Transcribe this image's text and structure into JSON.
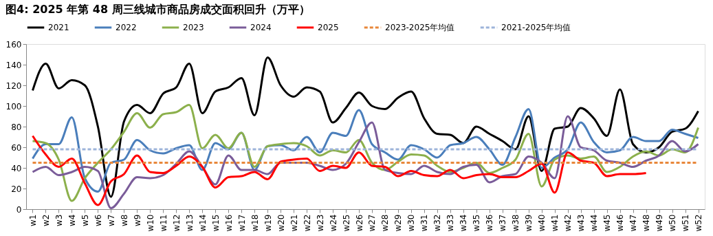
{
  "chart_data": {
    "type": "line",
    "title": "图4:  2025 年第 48 周三线城市商品房成交面积回升（万平）",
    "categories": [
      "w1",
      "w2",
      "w3",
      "w4",
      "w5",
      "w6",
      "w7",
      "w8",
      "w9",
      "w10",
      "w11",
      "w12",
      "w13",
      "w14",
      "w15",
      "w16",
      "w17",
      "w18",
      "w19",
      "w20",
      "w21",
      "w22",
      "w23",
      "w24",
      "w25",
      "w26",
      "w27",
      "w28",
      "w29",
      "w30",
      "w31",
      "w32",
      "w33",
      "w34",
      "w35",
      "w36",
      "w37",
      "w38",
      "w39",
      "w40",
      "w41",
      "w42",
      "w43",
      "w44",
      "w45",
      "w46",
      "w47",
      "w48",
      "w49",
      "w50",
      "w51",
      "w52"
    ],
    "series": [
      {
        "name": "2021",
        "color": "#000000",
        "values": [
          115,
          141,
          117,
          125,
          120,
          80,
          12,
          85,
          101,
          93,
          112,
          118,
          141,
          93,
          114,
          118,
          127,
          91,
          147,
          120,
          109,
          118,
          114,
          84,
          98,
          113,
          100,
          97,
          108,
          114,
          88,
          73,
          72,
          64,
          80,
          73,
          66,
          58,
          90,
          37,
          78,
          80,
          98,
          88,
          71,
          116,
          63,
          55,
          60,
          75,
          78,
          95
        ]
      },
      {
        "name": "2022",
        "color": "#4a7ebb",
        "values": [
          49,
          63,
          63,
          89,
          30,
          17,
          45,
          48,
          67,
          57,
          54,
          59,
          62,
          38,
          64,
          58,
          74,
          38,
          61,
          62,
          57,
          70,
          55,
          74,
          71,
          96,
          63,
          55,
          48,
          62,
          58,
          50,
          62,
          64,
          70,
          58,
          43,
          70,
          97,
          40,
          50,
          58,
          84,
          65,
          55,
          57,
          70,
          66,
          66,
          77,
          73,
          69
        ]
      },
      {
        "name": "2023",
        "color": "#8cb04c",
        "values": [
          66,
          64,
          48,
          8,
          30,
          45,
          58,
          75,
          93,
          79,
          92,
          94,
          101,
          59,
          72,
          59,
          74,
          41,
          61,
          63,
          64,
          61,
          52,
          57,
          55,
          67,
          45,
          38,
          46,
          53,
          52,
          42,
          36,
          40,
          45,
          35,
          40,
          48,
          73,
          22,
          48,
          52,
          49,
          51,
          36,
          41,
          51,
          56,
          52,
          58,
          55,
          79
        ]
      },
      {
        "name": "2024",
        "color": "#7a5c99",
        "values": [
          36,
          41,
          33,
          36,
          41,
          37,
          1,
          15,
          31,
          30,
          33,
          44,
          56,
          41,
          24,
          52,
          38,
          38,
          34,
          45,
          45,
          45,
          42,
          38,
          44,
          65,
          84,
          38,
          35,
          34,
          42,
          36,
          34,
          41,
          43,
          26,
          32,
          34,
          51,
          45,
          30,
          90,
          60,
          57,
          47,
          45,
          41,
          47,
          52,
          66,
          56,
          63
        ]
      },
      {
        "name": "2025",
        "color": "#ff0000",
        "values": [
          71,
          53,
          41,
          49,
          25,
          4,
          27,
          34,
          52,
          36,
          35,
          42,
          51,
          41,
          21,
          31,
          32,
          36,
          29,
          46,
          48,
          49,
          37,
          42,
          40,
          55,
          42,
          41,
          32,
          37,
          33,
          32,
          38,
          30,
          33,
          34,
          31,
          31,
          37,
          44,
          16,
          55,
          47,
          45,
          32,
          34,
          34,
          35,
          null,
          null,
          null,
          null
        ]
      },
      {
        "name": "2023-2025年均值",
        "color": "#e8873a",
        "line_style": "dashed",
        "values": [
          45,
          45,
          45,
          45,
          45,
          45,
          45,
          45,
          45,
          45,
          45,
          45,
          45,
          45,
          45,
          45,
          45,
          45,
          45,
          45,
          45,
          45,
          45,
          45,
          45,
          45,
          45,
          45,
          45,
          45,
          45,
          45,
          45,
          45,
          45,
          45,
          45,
          45,
          45,
          45,
          45,
          45,
          45,
          45,
          45,
          45,
          45,
          45,
          45,
          45,
          45,
          45
        ]
      },
      {
        "name": "2021-2025年均值",
        "color": "#9db4da",
        "line_style": "dashed",
        "values": [
          58,
          58,
          58,
          58,
          58,
          58,
          58,
          58,
          58,
          58,
          58,
          58,
          58,
          58,
          58,
          58,
          58,
          58,
          58,
          58,
          58,
          58,
          58,
          58,
          58,
          58,
          58,
          58,
          58,
          58,
          58,
          58,
          58,
          58,
          58,
          58,
          58,
          58,
          58,
          58,
          58,
          58,
          58,
          58,
          58,
          58,
          58,
          58,
          58,
          58,
          58,
          58
        ]
      }
    ],
    "ylim": [
      0,
      160
    ],
    "yticks": [
      0,
      20,
      40,
      60,
      80,
      100,
      120,
      140,
      160
    ],
    "legend": "top",
    "grid": false,
    "line_style": "solid",
    "marker": "none"
  }
}
